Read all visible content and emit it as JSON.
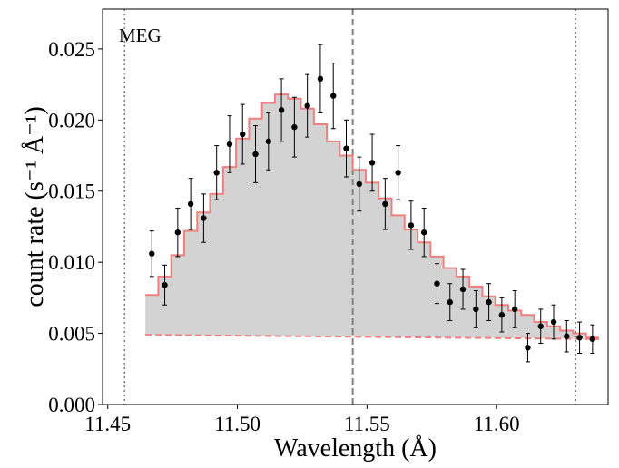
{
  "chart_data": {
    "type": "scatter",
    "title": "",
    "annotation": "MEG",
    "xlabel": "Wavelength (Å)",
    "ylabel": "count rate (s⁻¹ Å⁻¹)",
    "xlim": [
      11.448,
      11.643
    ],
    "ylim": [
      0.0,
      0.0278
    ],
    "xticks": [
      11.45,
      11.5,
      11.55,
      11.6
    ],
    "xtick_labels": [
      "11.45",
      "11.50",
      "11.55",
      "11.60"
    ],
    "yticks": [
      0.0,
      0.005,
      0.01,
      0.015,
      0.02,
      0.025
    ],
    "ytick_labels": [
      "0.000",
      "0.005",
      "0.010",
      "0.015",
      "0.020",
      "0.025"
    ],
    "bin_edges": [
      11.4645,
      11.4695,
      11.4745,
      11.4795,
      11.4845,
      11.4895,
      11.4945,
      11.4995,
      11.5045,
      11.5095,
      11.5145,
      11.5195,
      11.5245,
      11.5295,
      11.5345,
      11.5395,
      11.5445,
      11.5495,
      11.5545,
      11.5595,
      11.5645,
      11.5695,
      11.5745,
      11.5795,
      11.5845,
      11.5895,
      11.5945,
      11.5995,
      11.6045,
      11.6095,
      11.6145,
      11.6195,
      11.6245,
      11.6295,
      11.6345,
      11.6395
    ],
    "model": {
      "name": "model",
      "color": "#f08080",
      "values": [
        0.0077,
        0.009,
        0.0105,
        0.0122,
        0.0135,
        0.0148,
        0.0167,
        0.0187,
        0.0201,
        0.0212,
        0.0218,
        0.0215,
        0.0208,
        0.0197,
        0.0185,
        0.0175,
        0.0165,
        0.0156,
        0.0145,
        0.0133,
        0.0123,
        0.0114,
        0.0104,
        0.0096,
        0.009,
        0.0083,
        0.0076,
        0.007,
        0.0066,
        0.0063,
        0.0058,
        0.0055,
        0.0052,
        0.005,
        0.0047
      ]
    },
    "continuum": {
      "name": "continuum",
      "color": "#f08080",
      "x": [
        11.4645,
        11.6395
      ],
      "y": [
        0.0049,
        0.0046
      ]
    },
    "data": {
      "name": "data",
      "color": "#000000",
      "x": [
        11.467,
        11.472,
        11.477,
        11.482,
        11.487,
        11.492,
        11.497,
        11.502,
        11.507,
        11.512,
        11.517,
        11.522,
        11.527,
        11.532,
        11.537,
        11.542,
        11.547,
        11.552,
        11.557,
        11.562,
        11.567,
        11.572,
        11.577,
        11.582,
        11.587,
        11.592,
        11.597,
        11.602,
        11.607,
        11.612,
        11.617,
        11.622,
        11.627,
        11.632,
        11.637
      ],
      "y": [
        0.0106,
        0.0084,
        0.0121,
        0.0141,
        0.0131,
        0.0163,
        0.0183,
        0.019,
        0.0176,
        0.0185,
        0.0207,
        0.0195,
        0.021,
        0.0229,
        0.0217,
        0.018,
        0.0155,
        0.017,
        0.0141,
        0.0163,
        0.0126,
        0.0121,
        0.0085,
        0.0072,
        0.0081,
        0.0067,
        0.0072,
        0.0063,
        0.0067,
        0.004,
        0.0055,
        0.0058,
        0.0048,
        0.0047,
        0.0046
      ],
      "yerr": [
        0.0016,
        0.0014,
        0.0017,
        0.0018,
        0.0017,
        0.0019,
        0.002,
        0.0021,
        0.002,
        0.002,
        0.0022,
        0.0021,
        0.0022,
        0.0024,
        0.0023,
        0.002,
        0.0019,
        0.002,
        0.0018,
        0.0019,
        0.0017,
        0.0017,
        0.0014,
        0.0013,
        0.0014,
        0.0013,
        0.0013,
        0.0012,
        0.0013,
        0.001,
        0.0012,
        0.0012,
        0.0011,
        0.0011,
        0.001
      ]
    },
    "vlines": [
      {
        "name": "lower-bound",
        "x": 11.4565,
        "style": "dotted",
        "color": "#808080"
      },
      {
        "name": "line-center",
        "x": 11.5445,
        "style": "dashed",
        "color": "#808080"
      },
      {
        "name": "upper-bound",
        "x": 11.6305,
        "style": "dotted",
        "color": "#808080"
      }
    ]
  }
}
